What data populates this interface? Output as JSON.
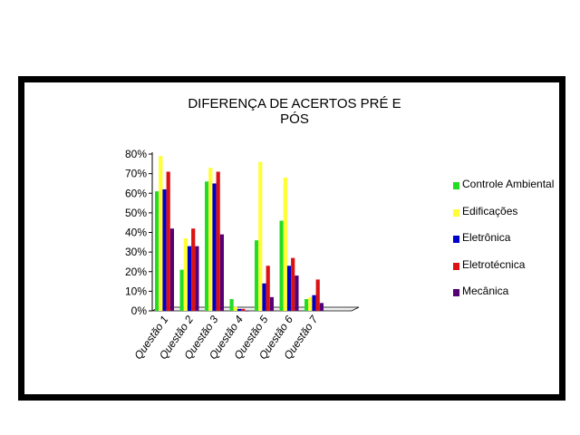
{
  "chart_data": {
    "type": "bar",
    "title": "DIFERENÇA DE ACERTOS PRÉ E PÓS",
    "xlabel": "",
    "ylabel": "",
    "ylim": [
      0,
      80
    ],
    "yticks": [
      "0%",
      "10%",
      "20%",
      "30%",
      "40%",
      "50%",
      "60%",
      "70%",
      "80%"
    ],
    "categories": [
      "Questão 1",
      "Questão 2",
      "Questão 3",
      "Questão 4",
      "Questão 5",
      "Questão 6",
      "Questão 7"
    ],
    "legend_position": "right",
    "grid": false,
    "series": [
      {
        "name": "Controle Ambiental",
        "color": "#22dd22",
        "values": [
          61,
          21,
          66,
          6,
          36,
          46,
          6
        ]
      },
      {
        "name": "Edificações",
        "color": "#ffff33",
        "values": [
          79,
          37,
          73,
          2,
          76,
          68,
          7
        ]
      },
      {
        "name": "Eletrônica",
        "color": "#0000cc",
        "values": [
          62,
          33,
          65,
          1,
          14,
          23,
          8
        ]
      },
      {
        "name": "Eletrotécnica",
        "color": "#dd1111",
        "values": [
          71,
          42,
          71,
          1,
          23,
          27,
          16
        ]
      },
      {
        "name": "Mecânica",
        "color": "#550077",
        "values": [
          42,
          33,
          39,
          0,
          7,
          18,
          4
        ]
      }
    ]
  }
}
